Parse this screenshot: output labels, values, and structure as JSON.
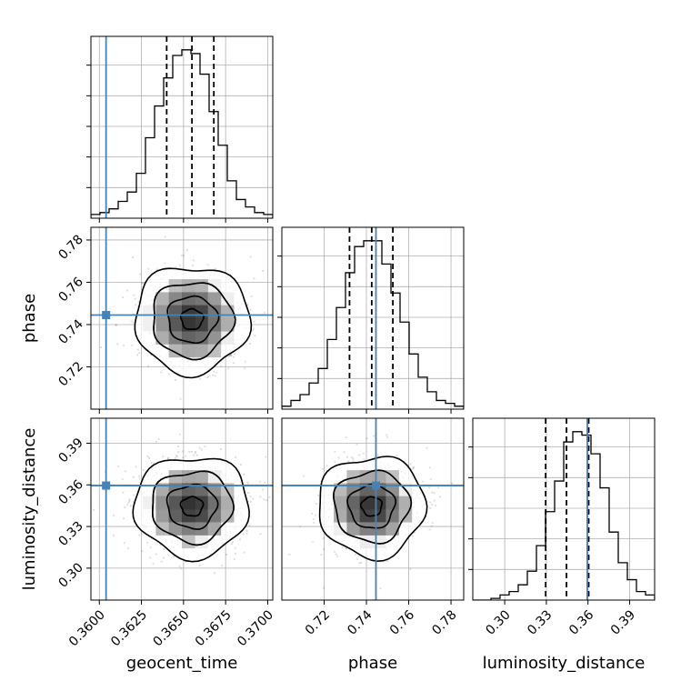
{
  "chart_data": {
    "type": "corner",
    "parameters": [
      {
        "name": "geocent_time",
        "range": [
          0.3595,
          0.3703
        ],
        "ticks": [
          "0.3600",
          "0.3625",
          "0.3650",
          "0.3675",
          "0.3700"
        ],
        "truth": 0.3604,
        "quantiles": [
          0.364,
          0.3655,
          0.3668
        ],
        "hist": [
          2,
          3,
          5,
          9,
          14,
          24,
          43,
          60,
          75,
          87,
          90,
          88,
          77,
          57,
          39,
          20,
          10,
          6,
          3,
          2
        ]
      },
      {
        "name": "phase",
        "range": [
          0.7,
          0.786
        ],
        "ticks": [
          "0.72",
          "0.74",
          "0.76",
          "0.78"
        ],
        "truth": 0.7445,
        "quantiles": [
          0.732,
          0.7425,
          0.7525
        ],
        "hist": [
          1,
          3,
          5,
          9,
          14,
          24,
          35,
          47,
          56,
          58,
          58,
          50,
          40,
          30,
          19,
          11,
          6,
          3,
          2,
          1
        ]
      },
      {
        "name": "luminosity_distance",
        "range": [
          0.277,
          0.408
        ],
        "ticks": [
          "0.30",
          "0.33",
          "0.36",
          "0.39"
        ],
        "truth": 0.3595,
        "quantiles": [
          0.3295,
          0.3445,
          0.3605
        ],
        "hist": [
          0,
          0,
          1,
          3,
          5,
          9,
          17,
          32,
          52,
          70,
          93,
          99,
          97,
          86,
          66,
          40,
          22,
          12,
          5,
          3
        ]
      }
    ],
    "grid": true,
    "truth_color": "#4682b4",
    "quantile_line_style": "dashed"
  }
}
